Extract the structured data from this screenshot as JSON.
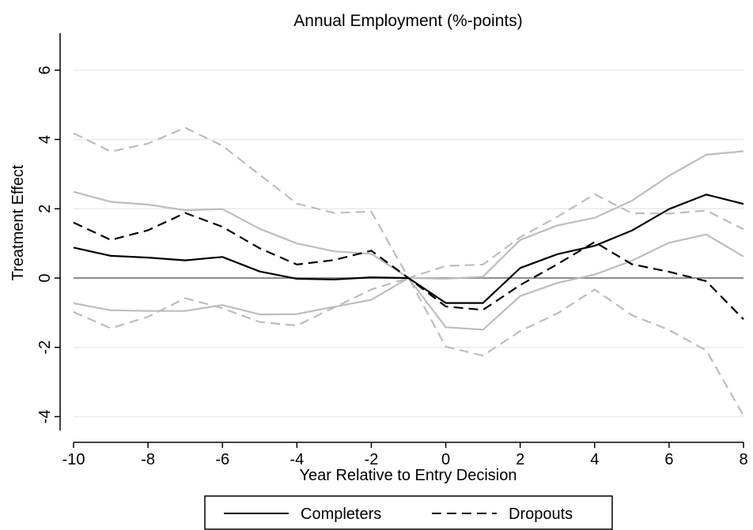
{
  "chart_data": {
    "type": "line",
    "title": "Annual Employment (%-points)",
    "xlabel": "Year Relative to Entry Decision",
    "ylabel": "Treatment Effect",
    "xlim": [
      -10,
      8
    ],
    "ylim": [
      -4.4,
      7.0
    ],
    "x_ticks": [
      -10,
      -8,
      -6,
      -4,
      -2,
      0,
      2,
      4,
      6,
      8
    ],
    "y_ticks": [
      -4,
      -2,
      0,
      2,
      4,
      6
    ],
    "x_tick_labels": [
      "-10",
      "-8",
      "-6",
      "-4",
      "-2",
      "0",
      "2",
      "4",
      "6",
      "8"
    ],
    "y_tick_labels": [
      "-4",
      "-2",
      "0",
      "2",
      "4",
      "6"
    ],
    "grid": true,
    "reference_line_y": 0,
    "x": [
      -10,
      -9,
      -8,
      -7,
      -6,
      -5,
      -4,
      -3,
      -2,
      -1,
      0,
      1,
      2,
      3,
      4,
      5,
      6,
      7,
      8
    ],
    "series": [
      {
        "name": "Completers",
        "style": "solid",
        "color": "#000000",
        "in_legend": true,
        "values": [
          0.88,
          0.64,
          0.59,
          0.51,
          0.61,
          0.19,
          -0.02,
          -0.04,
          0.02,
          0.0,
          -0.72,
          -0.72,
          0.29,
          0.69,
          0.93,
          1.37,
          1.99,
          2.41,
          2.14
        ]
      },
      {
        "name": "",
        "style": "solid",
        "color": "#bdbdbd",
        "in_legend": false,
        "values": [
          2.49,
          2.2,
          2.12,
          1.96,
          1.99,
          1.42,
          1.0,
          0.77,
          0.7,
          0.0,
          -0.02,
          0.04,
          1.1,
          1.52,
          1.74,
          2.23,
          2.95,
          3.56,
          3.66
        ]
      },
      {
        "name": "",
        "style": "solid",
        "color": "#bdbdbd",
        "in_legend": false,
        "values": [
          -0.73,
          -0.93,
          -0.95,
          -0.95,
          -0.78,
          -1.05,
          -1.04,
          -0.83,
          -0.63,
          0.0,
          -1.42,
          -1.49,
          -0.52,
          -0.14,
          0.1,
          0.5,
          1.02,
          1.26,
          0.62
        ]
      },
      {
        "name": "Dropouts",
        "style": "dashed",
        "color": "#000000",
        "in_legend": true,
        "values": [
          1.6,
          1.1,
          1.38,
          1.88,
          1.48,
          0.86,
          0.39,
          0.52,
          0.79,
          0.0,
          -0.82,
          -0.92,
          -0.2,
          0.4,
          1.04,
          0.4,
          0.18,
          -0.09,
          -1.19
        ]
      },
      {
        "name": "",
        "style": "dashed",
        "color": "#bdbdbd",
        "in_legend": false,
        "values": [
          4.18,
          3.65,
          3.88,
          4.34,
          3.82,
          2.98,
          2.15,
          1.88,
          1.92,
          0.0,
          0.35,
          0.39,
          1.18,
          1.77,
          2.42,
          1.87,
          1.86,
          1.95,
          1.41
        ]
      },
      {
        "name": "",
        "style": "dashed",
        "color": "#bdbdbd",
        "in_legend": false,
        "values": [
          -0.98,
          -1.45,
          -1.12,
          -0.58,
          -0.87,
          -1.27,
          -1.37,
          -0.85,
          -0.33,
          0.0,
          -1.98,
          -2.24,
          -1.53,
          -1.02,
          -0.33,
          -1.07,
          -1.5,
          -2.09,
          -3.97
        ]
      }
    ],
    "legend": {
      "placement": "bottom-center",
      "entries": [
        {
          "label": "Completers",
          "style": "solid"
        },
        {
          "label": "Dropouts",
          "style": "dashed"
        }
      ]
    }
  }
}
